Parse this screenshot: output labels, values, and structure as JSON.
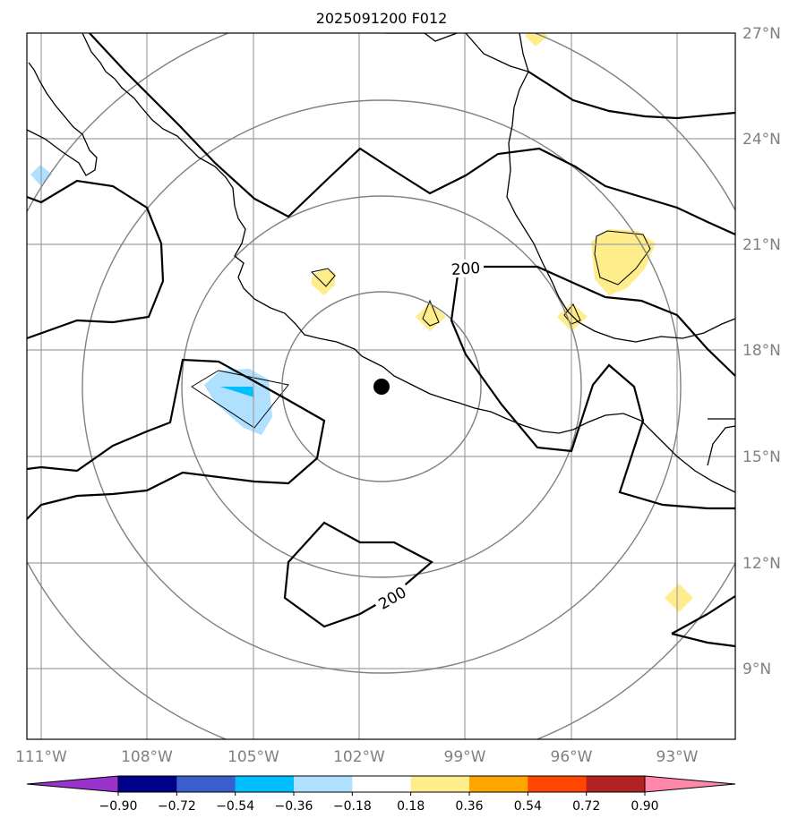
{
  "title": "2025091200 F012",
  "map": {
    "lat_range": [
      7,
      27
    ],
    "lon_range": [
      -111.4,
      -91.3
    ],
    "lat_ticks": [
      "27°N",
      "24°N",
      "21°N",
      "18°N",
      "15°N",
      "12°N",
      "9°N"
    ],
    "lon_ticks": [
      "111°W",
      "108°W",
      "105°W",
      "102°W",
      "99°W",
      "96°W",
      "93°W"
    ],
    "contour_labels": [
      "200",
      "200"
    ],
    "center_marker": {
      "lat": 17.0,
      "lon": -101.6
    },
    "range_rings": 4,
    "gridline_color": "#a0a0a0"
  },
  "colorbar": {
    "ticks": [
      "−0.90",
      "−0.72",
      "−0.54",
      "−0.36",
      "−0.18",
      "0.18",
      "0.36",
      "0.54",
      "0.72",
      "0.90"
    ],
    "colors": [
      "#9933cc",
      "#000088",
      "#3a5fcd",
      "#00bfff",
      "#b0e0ff",
      "#ffffff",
      "#ffec8b",
      "#ffa500",
      "#ff4500",
      "#b22222",
      "#ff88aa"
    ]
  }
}
